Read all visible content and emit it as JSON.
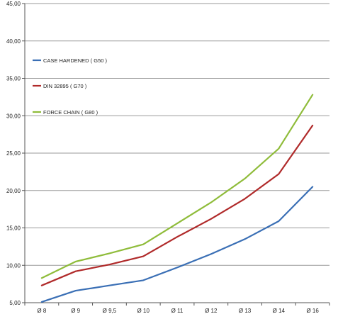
{
  "chart_data": {
    "type": "line",
    "categories": [
      "Ø 8",
      "Ø 9",
      "Ø 9,5",
      "Ø 10",
      "Ø 11",
      "Ø 12",
      "Ø 13",
      "Ø 14",
      "Ø 16"
    ],
    "y_ticks": [
      "5,00",
      "10,00",
      "15,00",
      "20,00",
      "25,00",
      "30,00",
      "35,00",
      "40,00",
      "45,00"
    ],
    "ylim": [
      5,
      45
    ],
    "grid": true,
    "legend_position": "top-left",
    "series": [
      {
        "name": "CASE HARDENED ( G50 )",
        "color": "#3a6fb5",
        "values": [
          5.1,
          6.6,
          7.3,
          8.0,
          9.7,
          11.5,
          13.5,
          15.9,
          20.5
        ]
      },
      {
        "name": "DIN 32895 ( G70 )",
        "color": "#b02a2a",
        "values": [
          7.3,
          9.2,
          10.1,
          11.2,
          13.8,
          16.2,
          18.9,
          22.2,
          28.7
        ]
      },
      {
        "name": "FORCE CHAIN ( G80 )",
        "color": "#8fbc3a",
        "values": [
          8.3,
          10.5,
          11.6,
          12.8,
          15.6,
          18.4,
          21.6,
          25.6,
          32.8
        ]
      }
    ]
  }
}
